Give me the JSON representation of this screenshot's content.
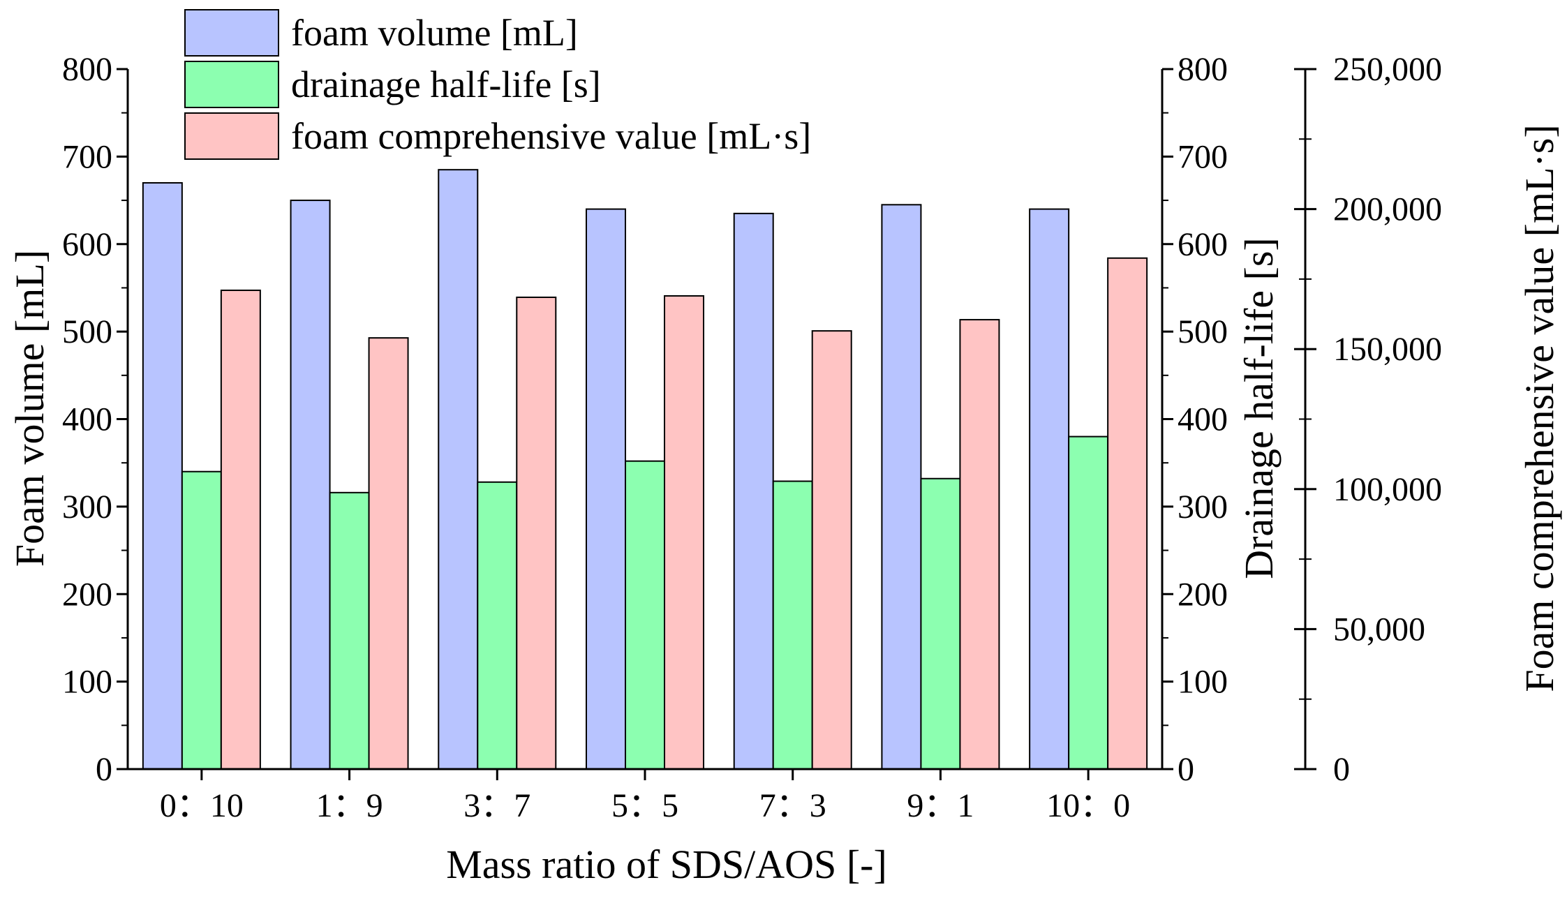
{
  "chart_data": {
    "type": "bar",
    "categories": [
      "0：10",
      "1：9",
      "3：7",
      "5：5",
      "7：3",
      "9：1",
      "10：0"
    ],
    "xlabel": "Mass ratio of SDS/AOS [-]",
    "series": [
      {
        "name": "foam volume [mL]",
        "axis": "left",
        "color": "#b8c4ff",
        "values": [
          670,
          650,
          685,
          640,
          635,
          645,
          640
        ]
      },
      {
        "name": "drainage half-life [s]",
        "axis": "middle",
        "color": "#8cffb0",
        "values": [
          340,
          316,
          328,
          352,
          329,
          332,
          380
        ]
      },
      {
        "name": "foam comprehensive value [mL·s]",
        "axis": "right",
        "color": "#ffc4c4",
        "values": [
          171000,
          154000,
          168500,
          169000,
          156500,
          160500,
          182500
        ]
      }
    ],
    "axes": {
      "left": {
        "label": "Foam volume [mL]",
        "ylim": [
          0,
          800
        ],
        "ticks": [
          "0",
          "100",
          "200",
          "300",
          "400",
          "500",
          "600",
          "700",
          "800"
        ]
      },
      "middle": {
        "label": "Drainage half-life [s]",
        "ylim": [
          0,
          800
        ],
        "ticks": [
          "0",
          "100",
          "200",
          "300",
          "400",
          "500",
          "600",
          "700",
          "800"
        ]
      },
      "right": {
        "label": "Foam comprehensive value [mL·s]",
        "ylim": [
          0,
          250000
        ],
        "ticks": [
          "0",
          "50,000",
          "100,000",
          "150,000",
          "200,000",
          "250,000"
        ]
      }
    },
    "legend_position": "top-left",
    "grid": false
  }
}
